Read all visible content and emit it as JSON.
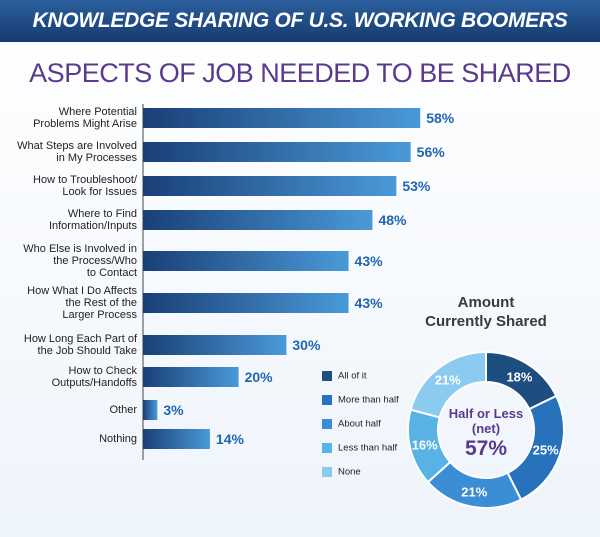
{
  "title": "KNOWLEDGE SHARING OF U.S. WORKING BOOMERS",
  "chart_data": [
    {
      "type": "bar",
      "orientation": "horizontal",
      "title": "ASPECTS OF JOB NEEDED TO BE SHARED",
      "color": "#4a9ad8",
      "categories": [
        "Where Potential\nProblems Might Arise",
        "What Steps are Involved\nin My Processes",
        "How to Troubleshoot/\nLook for Issues",
        "Where to Find\nInformation/Inputs",
        "Who Else is Involved in\nthe Process/Who\nto Contact",
        "How What I Do Affects\nthe Rest of the\nLarger Process",
        "How Long Each Part of\nthe Job Should Take",
        "How to Check\nOutputs/Handoffs",
        "Other",
        "Nothing"
      ],
      "values": [
        58,
        56,
        53,
        48,
        43,
        43,
        30,
        20,
        3,
        14
      ],
      "value_labels": [
        "58%",
        "56%",
        "53%",
        "48%",
        "43%",
        "43%",
        "30%",
        "20%",
        "3%",
        "14%"
      ]
    },
    {
      "type": "donut",
      "title": "Amount\nCurrently Shared",
      "categories": [
        "All of it",
        "More than half",
        "About half",
        "Less than half",
        "None"
      ],
      "values": [
        18,
        25,
        21,
        16,
        21
      ],
      "value_labels": [
        "18%",
        "25%",
        "21%",
        "16%",
        "21%"
      ],
      "colors": [
        "#1e4d7f",
        "#2872bb",
        "#3b8ed3",
        "#58b2e6",
        "#8ccbf0"
      ],
      "center_text": "Half or Less\n(net)",
      "net": 57,
      "net_label": "57%"
    }
  ]
}
